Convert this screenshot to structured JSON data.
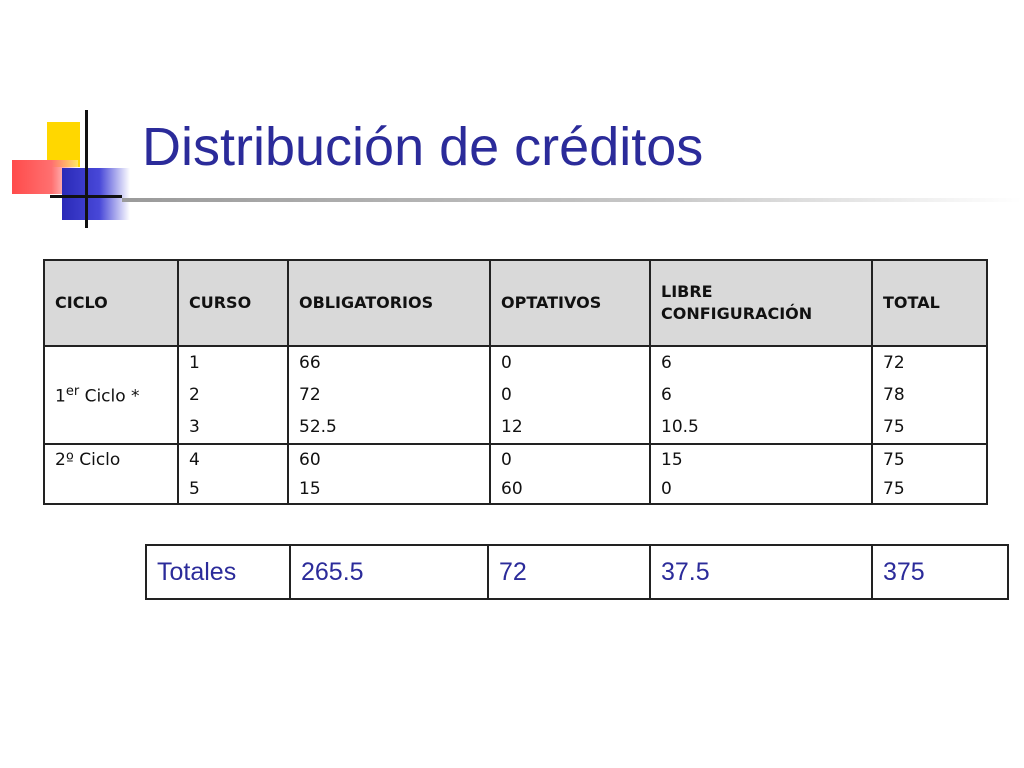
{
  "slide": {
    "title": "Distribución de créditos"
  },
  "credits_table": {
    "headers": [
      "CICLO",
      "CURSO",
      "OBLIGATORIOS",
      "OPTATIVOS",
      "LIBRE CONFIGURACIÓN",
      "TOTAL"
    ],
    "header_libre_line1": "LIBRE",
    "header_libre_line2": "CONFIGURACIÓN",
    "ciclo1_number": "1",
    "ciclo1_sup": "er",
    "ciclo1_text": " Ciclo *",
    "ciclo2_label": "2º Ciclo",
    "rows": [
      {
        "curso": "1",
        "obligatorios": "66",
        "optativos": "0",
        "libre": "6",
        "total": "72"
      },
      {
        "curso": "2",
        "obligatorios": "72",
        "optativos": "0",
        "libre": "6",
        "total": "78"
      },
      {
        "curso": "3",
        "obligatorios": "52.5",
        "optativos": "12",
        "libre": "10.5",
        "total": "75"
      },
      {
        "curso": "4",
        "obligatorios": "60",
        "optativos": "0",
        "libre": "15",
        "total": "75"
      },
      {
        "curso": "5",
        "obligatorios": "15",
        "optativos": "60",
        "libre": "0",
        "total": "75"
      }
    ]
  },
  "totals_table": {
    "label": "Totales",
    "obligatorios": "265.5",
    "optativos": "72",
    "libre": "37.5",
    "total": "375"
  },
  "colors": {
    "title": "#2b2b9a",
    "header_bg": "#d9d9d9",
    "logo_yellow": "#FFD700",
    "logo_red": "#ff4b4b",
    "logo_blue": "#2a2ab8"
  }
}
